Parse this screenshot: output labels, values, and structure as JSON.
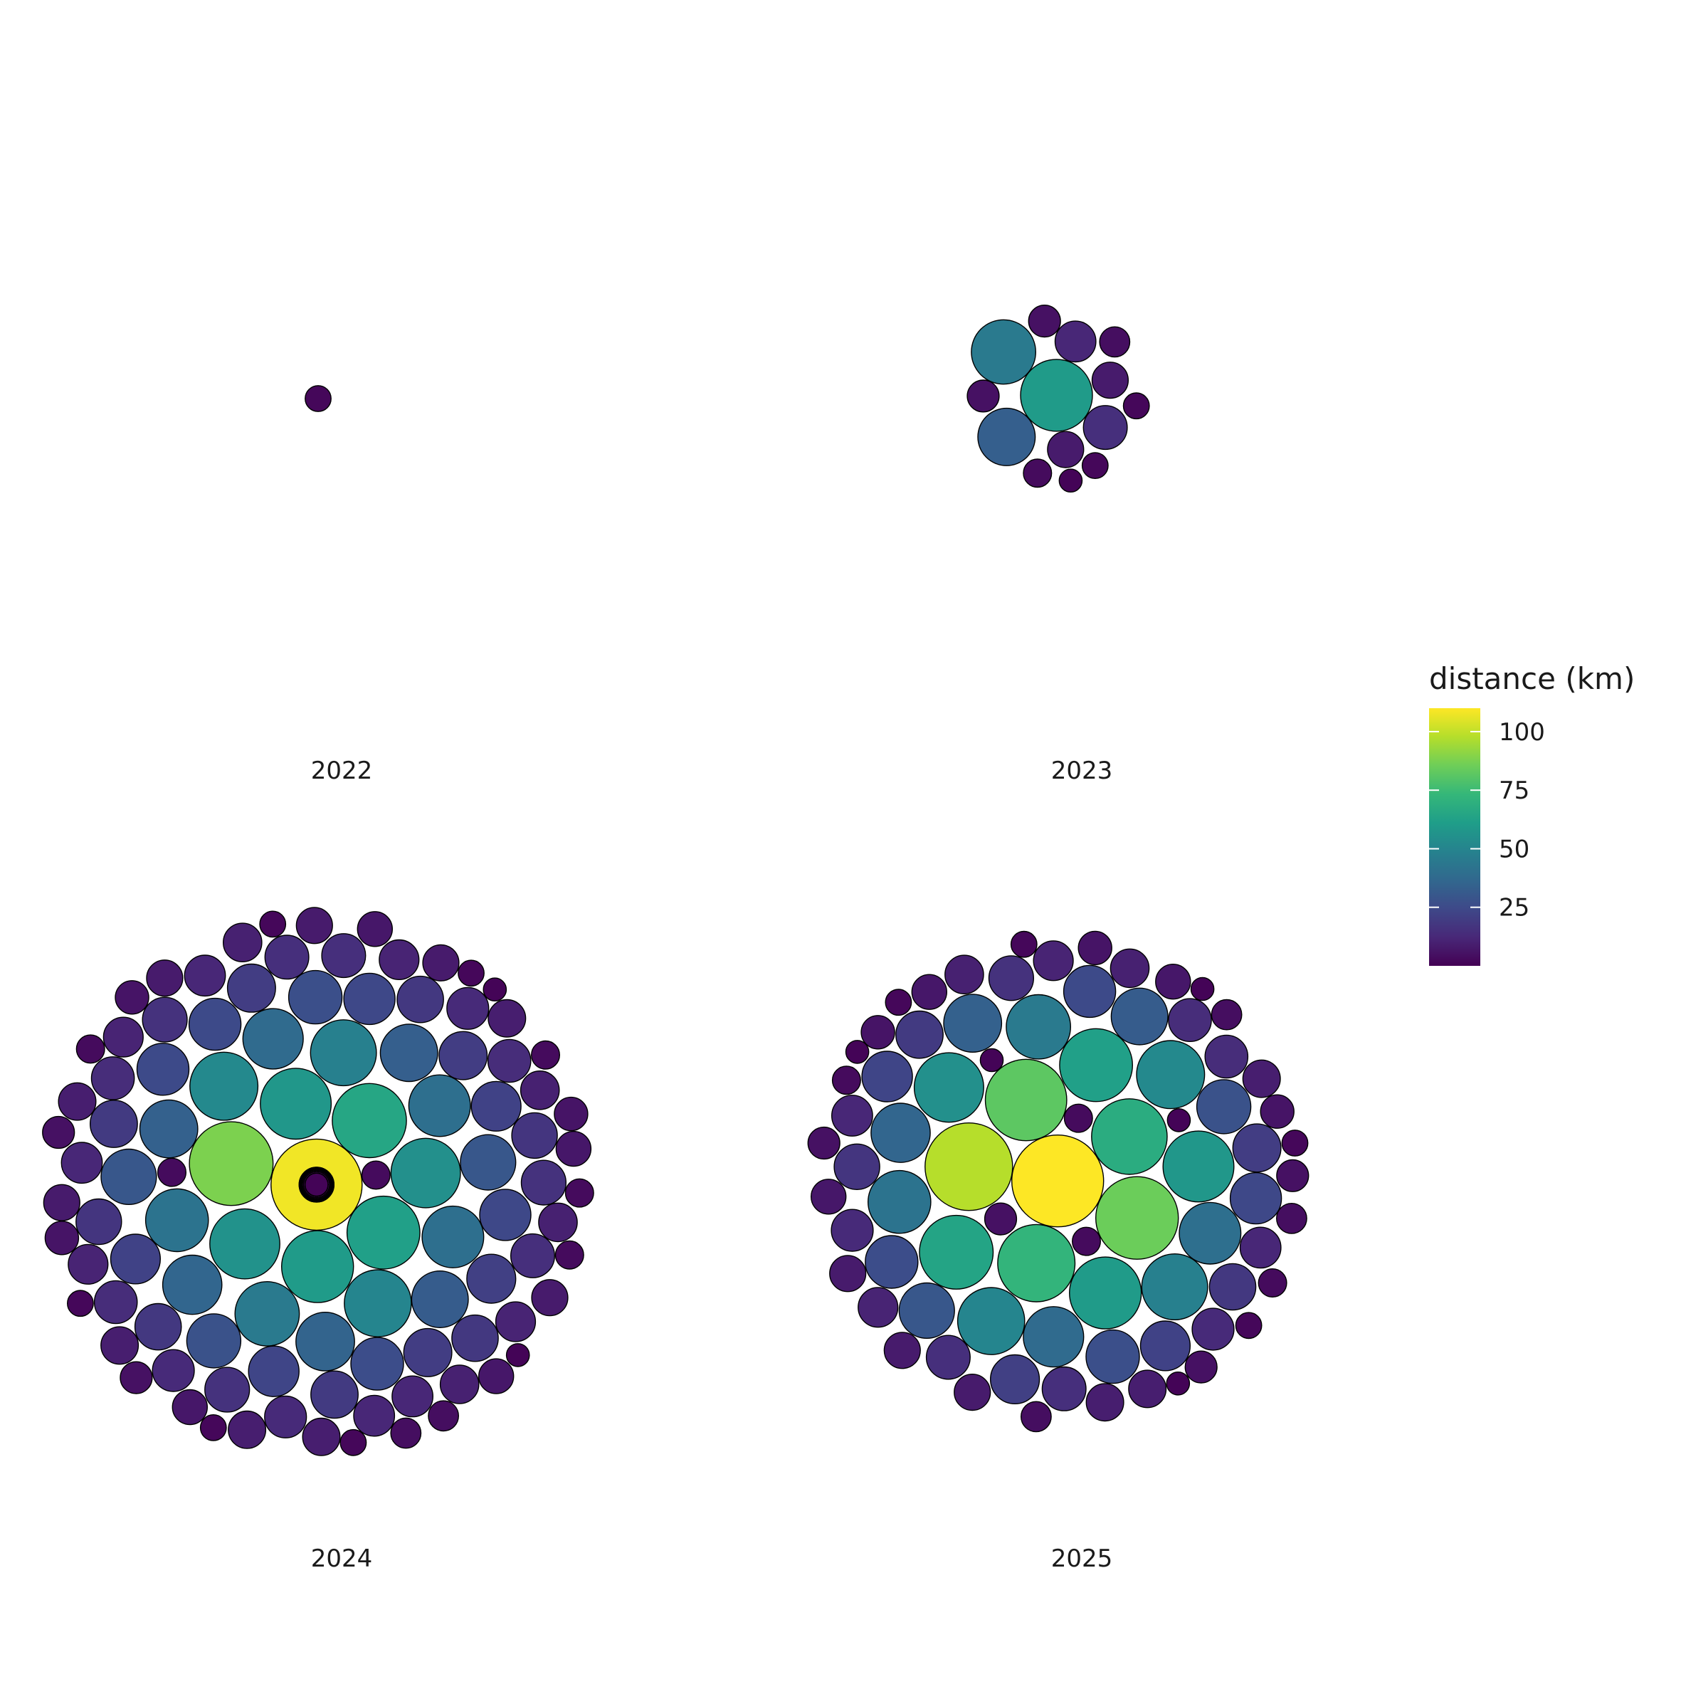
{
  "chart_data": {
    "type": "packed-bubble",
    "legend": {
      "title": "distance (km)",
      "position": "right",
      "min": 0,
      "max": 110,
      "ticks": [
        25,
        50,
        75,
        100
      ],
      "tick_labels": [
        "25",
        "50",
        "75",
        "100"
      ],
      "palette": [
        "#440154",
        "#482878",
        "#3e4989",
        "#31688e",
        "#26828e",
        "#1f9e89",
        "#35b779",
        "#6ece58",
        "#b5de2b",
        "#fde725"
      ]
    },
    "panels": [
      {
        "label": "2022",
        "distances": [
          2
        ]
      },
      {
        "label": "2023",
        "distances": [
          60,
          45,
          33,
          15,
          12,
          8,
          8,
          5,
          5,
          4,
          3,
          2,
          2,
          1
        ]
      },
      {
        "label": "2024",
        "distances": [
          108,
          88,
          65,
          62,
          60,
          58,
          56,
          55,
          52,
          50,
          48,
          45,
          42,
          40,
          40,
          38,
          36,
          35,
          34,
          33,
          32,
          30,
          30,
          28,
          27,
          26,
          25,
          25,
          24,
          24,
          23,
          22,
          22,
          21,
          20,
          20,
          20,
          19,
          19,
          18,
          18,
          18,
          17,
          17,
          16,
          16,
          16,
          15,
          15,
          15,
          14,
          14,
          14,
          13,
          13,
          13,
          12,
          12,
          12,
          12,
          11,
          11,
          11,
          11,
          10,
          10,
          10,
          10,
          9,
          9,
          9,
          9,
          9,
          8,
          8,
          8,
          8,
          8,
          7,
          7,
          7,
          7,
          7,
          7,
          6,
          6,
          6,
          6,
          6,
          6,
          5,
          5,
          5,
          5,
          5,
          5,
          5,
          4,
          4,
          4,
          4,
          4,
          4,
          4,
          3,
          3,
          3,
          3,
          3,
          3,
          3,
          3,
          2,
          2,
          2,
          2,
          2,
          2,
          2,
          2,
          1,
          1,
          1,
          1,
          1,
          1,
          1,
          1,
          1,
          1,
          1,
          1,
          1,
          1,
          1
        ]
      },
      {
        "label": "2025",
        "distances": [
          110,
          98,
          85,
          82,
          72,
          68,
          64,
          62,
          60,
          58,
          55,
          52,
          50,
          48,
          45,
          42,
          40,
          38,
          36,
          34,
          32,
          30,
          28,
          27,
          26,
          25,
          24,
          23,
          22,
          21,
          20,
          19,
          18,
          17,
          16,
          15,
          15,
          14,
          14,
          13,
          13,
          12,
          12,
          11,
          11,
          10,
          10,
          9,
          9,
          9,
          8,
          8,
          8,
          7,
          7,
          7,
          6,
          6,
          6,
          5,
          5,
          5,
          5,
          4,
          4,
          4,
          3,
          3,
          3,
          3,
          2,
          2,
          2,
          2,
          1,
          1,
          1,
          1,
          1
        ]
      }
    ]
  }
}
